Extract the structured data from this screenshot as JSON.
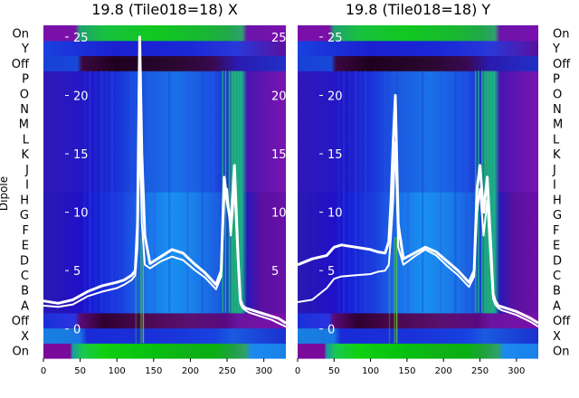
{
  "chart_data": [
    {
      "type": "heatmap",
      "title": "19.8 (Tile018=18) X",
      "ylabel": "Dipole",
      "xlim": [
        0,
        330
      ],
      "xticks": [
        0,
        50,
        100,
        150,
        200,
        250,
        300
      ],
      "categories": [
        "On",
        "X",
        "Off",
        "A",
        "B",
        "C",
        "D",
        "E",
        "F",
        "G",
        "H",
        "I",
        "J",
        "K",
        "L",
        "M",
        "N",
        "O",
        "P",
        "Off",
        "Y",
        "On"
      ],
      "overlay_ylim": [
        -2.5,
        26
      ],
      "overlay_yticks": [
        0,
        5,
        10,
        15,
        20,
        25
      ],
      "series": [
        {
          "x": [
            0,
            20,
            40,
            60,
            80,
            100,
            110,
            120,
            125,
            128,
            131,
            134,
            138,
            145,
            160,
            175,
            190,
            205,
            220,
            235,
            242,
            246,
            250,
            255,
            260,
            265,
            268,
            271,
            275,
            280,
            290,
            300,
            310,
            320,
            330
          ],
          "y": [
            2.4,
            2.2,
            2.5,
            3.2,
            3.7,
            4.0,
            4.2,
            4.6,
            5,
            9,
            25,
            15,
            8,
            5.6,
            6.2,
            6.8,
            6.5,
            5.6,
            4.8,
            3.8,
            5,
            13,
            11,
            9,
            14,
            6,
            2.5,
            2.0,
            1.8,
            1.7,
            1.5,
            1.3,
            1.1,
            0.9,
            0.5
          ]
        },
        {
          "x": [
            0,
            20,
            40,
            60,
            80,
            100,
            110,
            120,
            125,
            128,
            131,
            134,
            138,
            145,
            160,
            175,
            190,
            205,
            220,
            235,
            242,
            246,
            250,
            255,
            260,
            265,
            268,
            271,
            275,
            280,
            290,
            300,
            310,
            320,
            330
          ],
          "y": [
            2.0,
            1.9,
            2.1,
            2.8,
            3.2,
            3.5,
            3.8,
            4.2,
            4.6,
            7,
            17,
            9,
            5.5,
            5.2,
            5.8,
            6.2,
            5.9,
            5.1,
            4.4,
            3.4,
            4.5,
            11,
            12,
            8,
            12,
            5.5,
            2.2,
            1.8,
            1.6,
            1.4,
            1.2,
            1.0,
            0.8,
            0.5,
            0.2
          ]
        }
      ]
    },
    {
      "type": "heatmap",
      "title": "19.8 (Tile018=18) Y",
      "xlim": [
        0,
        330
      ],
      "xticks": [
        0,
        50,
        100,
        150,
        200,
        250,
        300
      ],
      "categories": [
        "On",
        "X",
        "Off",
        "A",
        "B",
        "C",
        "D",
        "E",
        "F",
        "G",
        "H",
        "I",
        "J",
        "K",
        "L",
        "M",
        "N",
        "O",
        "P",
        "Off",
        "Y",
        "On"
      ],
      "overlay_ylim": [
        -2.5,
        26
      ],
      "overlay_yticks": [
        0,
        5,
        10,
        15,
        20,
        25
      ],
      "series": [
        {
          "x": [
            0,
            20,
            40,
            50,
            60,
            80,
            100,
            110,
            120,
            125,
            128,
            131,
            134,
            138,
            145,
            160,
            175,
            190,
            205,
            220,
            235,
            242,
            246,
            250,
            255,
            260,
            265,
            268,
            271,
            275,
            280,
            290,
            300,
            310,
            320,
            330
          ],
          "y": [
            5.5,
            6.0,
            6.3,
            7.0,
            7.2,
            7.0,
            6.8,
            6.6,
            6.5,
            7.5,
            11,
            16,
            20,
            9,
            6.0,
            6.5,
            7.0,
            6.6,
            5.8,
            5.0,
            4.0,
            5,
            12,
            14,
            10,
            13,
            7,
            3.0,
            2.4,
            2.0,
            1.9,
            1.7,
            1.5,
            1.2,
            0.9,
            0.5
          ]
        },
        {
          "x": [
            0,
            20,
            40,
            50,
            60,
            80,
            100,
            110,
            120,
            125,
            128,
            131,
            134,
            138,
            145,
            160,
            175,
            190,
            205,
            220,
            235,
            242,
            246,
            250,
            255,
            260,
            265,
            268,
            271,
            275,
            280,
            290,
            300,
            310,
            320,
            330
          ],
          "y": [
            2.3,
            2.5,
            3.5,
            4.3,
            4.5,
            4.6,
            4.7,
            4.9,
            5.0,
            5.5,
            8,
            11,
            16,
            7,
            5.5,
            6.2,
            6.8,
            6.3,
            5.4,
            4.6,
            3.6,
            4.5,
            10,
            12,
            8,
            11,
            5.5,
            2.6,
            2.1,
            1.8,
            1.6,
            1.4,
            1.2,
            0.9,
            0.6,
            0.2
          ]
        }
      ]
    }
  ]
}
